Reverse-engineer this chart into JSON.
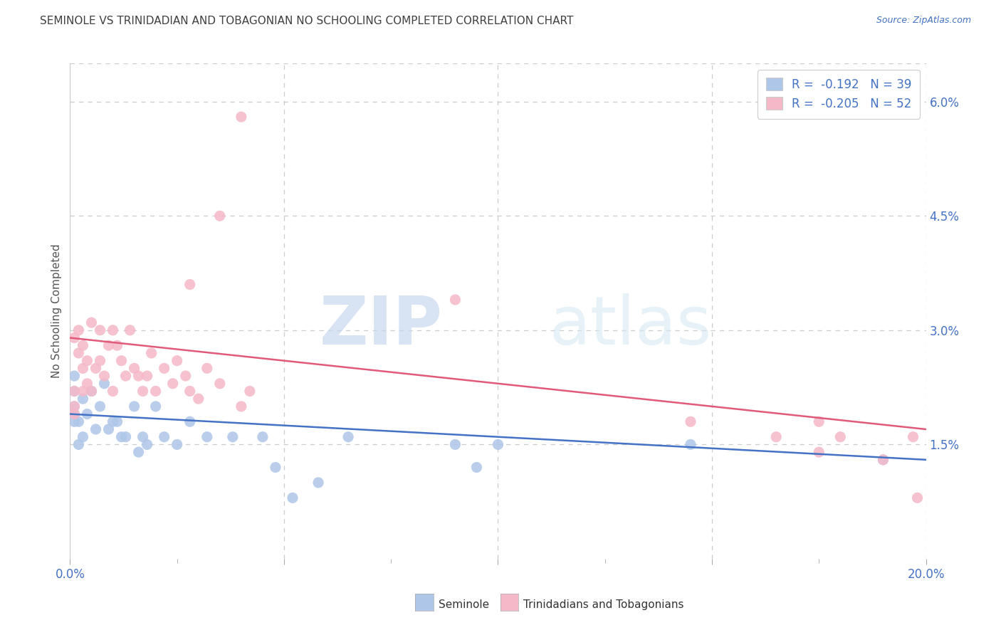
{
  "title": "SEMINOLE VS TRINIDADIAN AND TOBAGONIAN NO SCHOOLING COMPLETED CORRELATION CHART",
  "source": "Source: ZipAtlas.com",
  "ylabel": "No Schooling Completed",
  "watermark_zip": "ZIP",
  "watermark_atlas": "atlas",
  "legend_line1": "R =  -0.192   N = 39",
  "legend_line2": "R =  -0.205   N = 52",
  "seminole_color": "#aec6e8",
  "trini_color": "#f5b8c8",
  "line_seminole_color": "#4472c4",
  "line_trini_color": "#e05a7a",
  "axis_label_color": "#4472c4",
  "title_color": "#404040",
  "source_color": "#4472c4",
  "ylabel_color": "#555555",
  "legend_text_color": "#4472c4",
  "xlim": [
    0.0,
    0.2
  ],
  "ylim": [
    0.0,
    0.065
  ],
  "sem_line_start": 0.019,
  "sem_line_end": 0.013,
  "tri_line_start": 0.029,
  "tri_line_end": 0.017,
  "seminole_x": [
    0.001,
    0.001,
    0.001,
    0.001,
    0.001,
    0.002,
    0.002,
    0.003,
    0.003,
    0.004,
    0.005,
    0.006,
    0.007,
    0.008,
    0.009,
    0.01,
    0.011,
    0.012,
    0.013,
    0.015,
    0.016,
    0.017,
    0.018,
    0.02,
    0.022,
    0.025,
    0.028,
    0.032,
    0.038,
    0.045,
    0.048,
    0.052,
    0.058,
    0.065,
    0.09,
    0.095,
    0.1,
    0.145,
    0.19
  ],
  "seminole_y": [
    0.02,
    0.019,
    0.018,
    0.022,
    0.024,
    0.018,
    0.015,
    0.021,
    0.016,
    0.019,
    0.022,
    0.017,
    0.02,
    0.023,
    0.017,
    0.018,
    0.018,
    0.016,
    0.016,
    0.02,
    0.014,
    0.016,
    0.015,
    0.02,
    0.016,
    0.015,
    0.018,
    0.016,
    0.016,
    0.016,
    0.012,
    0.008,
    0.01,
    0.016,
    0.015,
    0.012,
    0.015,
    0.015,
    0.013
  ],
  "trini_x": [
    0.001,
    0.001,
    0.001,
    0.001,
    0.002,
    0.002,
    0.003,
    0.003,
    0.003,
    0.004,
    0.004,
    0.005,
    0.005,
    0.006,
    0.007,
    0.007,
    0.008,
    0.009,
    0.01,
    0.01,
    0.011,
    0.012,
    0.013,
    0.014,
    0.015,
    0.016,
    0.017,
    0.018,
    0.019,
    0.02,
    0.022,
    0.024,
    0.025,
    0.027,
    0.028,
    0.03,
    0.032,
    0.035,
    0.04,
    0.042,
    0.028,
    0.035,
    0.04,
    0.09,
    0.145,
    0.165,
    0.175,
    0.175,
    0.18,
    0.19,
    0.197,
    0.198
  ],
  "trini_y": [
    0.02,
    0.019,
    0.022,
    0.029,
    0.027,
    0.03,
    0.025,
    0.028,
    0.022,
    0.026,
    0.023,
    0.031,
    0.022,
    0.025,
    0.03,
    0.026,
    0.024,
    0.028,
    0.022,
    0.03,
    0.028,
    0.026,
    0.024,
    0.03,
    0.025,
    0.024,
    0.022,
    0.024,
    0.027,
    0.022,
    0.025,
    0.023,
    0.026,
    0.024,
    0.022,
    0.021,
    0.025,
    0.023,
    0.02,
    0.022,
    0.036,
    0.045,
    0.058,
    0.034,
    0.018,
    0.016,
    0.014,
    0.018,
    0.016,
    0.013,
    0.016,
    0.008
  ],
  "background_color": "#ffffff",
  "dashed_grid_color": "#cccccc",
  "border_color": "#cccccc"
}
